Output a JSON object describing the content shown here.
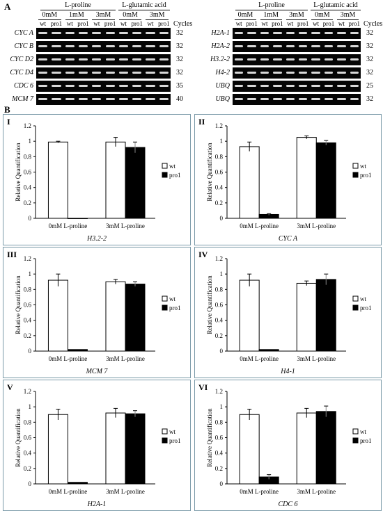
{
  "panel_labels": {
    "a": "A",
    "b": "B"
  },
  "gel_left": {
    "group1": "L-proline",
    "group2": "L-glutamic acid",
    "concentrations": [
      "0mM",
      "1mM",
      "3mM",
      "0mM",
      "3mM"
    ],
    "lanes": [
      "wt",
      "pro1",
      "wt",
      "pro1",
      "wt",
      "pro1",
      "wt",
      "pro1",
      "wt",
      "pro1"
    ],
    "cycles_header": "Cycles",
    "rows": [
      {
        "gene": "CYC A",
        "cycles": "32"
      },
      {
        "gene": "CYC B",
        "cycles": "32"
      },
      {
        "gene": "CYC D2",
        "cycles": "32"
      },
      {
        "gene": "CYC D4",
        "cycles": "32"
      },
      {
        "gene": "CDC 6",
        "cycles": "35"
      },
      {
        "gene": "MCM 7",
        "cycles": "40"
      }
    ]
  },
  "gel_right": {
    "group1": "L-proline",
    "group2": "L-glutamic acid",
    "concentrations": [
      "0mM",
      "1mM",
      "3mM",
      "0mM",
      "3mM"
    ],
    "lanes": [
      "wt",
      "pro1",
      "wt",
      "pro1",
      "wt",
      "pro1",
      "wt",
      "pro1",
      "wt",
      "pro1"
    ],
    "cycles_header": "Cycles",
    "rows": [
      {
        "gene": "H2A-1",
        "cycles": "32"
      },
      {
        "gene": "H2A-2",
        "cycles": "32"
      },
      {
        "gene": "H3.2-2",
        "cycles": "32"
      },
      {
        "gene": "H4-2",
        "cycles": "32"
      },
      {
        "gene": "UBQ",
        "cycles": "25"
      },
      {
        "gene": "UBQ",
        "cycles": "32"
      }
    ]
  },
  "chart_data": [
    {
      "panel": "I",
      "type": "bar",
      "gene": "H3.2-2",
      "ylabel": "Relative Quantification",
      "categories": [
        "0mM L-proline",
        "3mM L-proline"
      ],
      "ylim": [
        0,
        1.2
      ],
      "yticks": [
        "0",
        "0.2",
        "0.4",
        "0.6",
        "0.8",
        "1",
        "1.2"
      ],
      "series": [
        {
          "name": "wt",
          "values": [
            0.99,
            0.99
          ],
          "errors": [
            0.01,
            0.06
          ]
        },
        {
          "name": "pro1",
          "values": [
            0.0,
            0.92
          ],
          "errors": [
            0.0,
            0.07
          ]
        }
      ],
      "legend": "right"
    },
    {
      "panel": "II",
      "type": "bar",
      "gene": "CYC A",
      "ylabel": "Relative Quantification",
      "categories": [
        "0mM L-proline",
        "3mM L-proline"
      ],
      "ylim": [
        0,
        1.2
      ],
      "yticks": [
        "0",
        "0.2",
        "0.4",
        "0.6",
        "0.8",
        "1",
        "1.2"
      ],
      "series": [
        {
          "name": "wt",
          "values": [
            0.93,
            1.05
          ],
          "errors": [
            0.06,
            0.02
          ]
        },
        {
          "name": "pro1",
          "values": [
            0.05,
            0.98
          ],
          "errors": [
            0.01,
            0.03
          ]
        }
      ],
      "legend": "right"
    },
    {
      "panel": "III",
      "type": "bar",
      "gene": "MCM 7",
      "ylabel": "Relative Quantification",
      "categories": [
        "0mM L-proline",
        "3mM L-proline"
      ],
      "ylim": [
        0,
        1.2
      ],
      "yticks": [
        "0",
        "0.2",
        "0.4",
        "0.6",
        "0.8",
        "1",
        "1.2"
      ],
      "series": [
        {
          "name": "wt",
          "values": [
            0.92,
            0.9
          ],
          "errors": [
            0.08,
            0.03
          ]
        },
        {
          "name": "pro1",
          "values": [
            0.02,
            0.87
          ],
          "errors": [
            0.0,
            0.03
          ]
        }
      ],
      "legend": "right"
    },
    {
      "panel": "IV",
      "type": "bar",
      "gene": "H4-1",
      "ylabel": "Relative Quantification",
      "categories": [
        "0mM L-proline",
        "3mM L-proline"
      ],
      "ylim": [
        0,
        1.2
      ],
      "yticks": [
        "0",
        "0.2",
        "0.4",
        "0.6",
        "0.8",
        "1",
        "1.2"
      ],
      "series": [
        {
          "name": "wt",
          "values": [
            0.92,
            0.88
          ],
          "errors": [
            0.08,
            0.03
          ]
        },
        {
          "name": "pro1",
          "values": [
            0.02,
            0.93
          ],
          "errors": [
            0.0,
            0.07
          ]
        }
      ],
      "legend": "right"
    },
    {
      "panel": "V",
      "type": "bar",
      "gene": "H2A-1",
      "ylabel": "Relative Quantification",
      "categories": [
        "0mM L-proline",
        "3mM L-proline"
      ],
      "ylim": [
        0,
        1.2
      ],
      "yticks": [
        "0",
        "0.2",
        "0.4",
        "0.6",
        "0.8",
        "1",
        "1.2"
      ],
      "series": [
        {
          "name": "wt",
          "values": [
            0.9,
            0.92
          ],
          "errors": [
            0.07,
            0.06
          ]
        },
        {
          "name": "pro1",
          "values": [
            0.02,
            0.91
          ],
          "errors": [
            0.0,
            0.04
          ]
        }
      ],
      "legend": "right"
    },
    {
      "panel": "VI",
      "type": "bar",
      "gene": "CDC 6",
      "ylabel": "Relative Quantification",
      "categories": [
        "0mM L-proline",
        "3mM L-proline"
      ],
      "ylim": [
        0,
        1.2
      ],
      "yticks": [
        "0",
        "0.2",
        "0.4",
        "0.6",
        "0.8",
        "1",
        "1.2"
      ],
      "series": [
        {
          "name": "wt",
          "values": [
            0.9,
            0.92
          ],
          "errors": [
            0.07,
            0.06
          ]
        },
        {
          "name": "pro1",
          "values": [
            0.09,
            0.94
          ],
          "errors": [
            0.03,
            0.07
          ]
        }
      ],
      "legend": "right"
    }
  ]
}
